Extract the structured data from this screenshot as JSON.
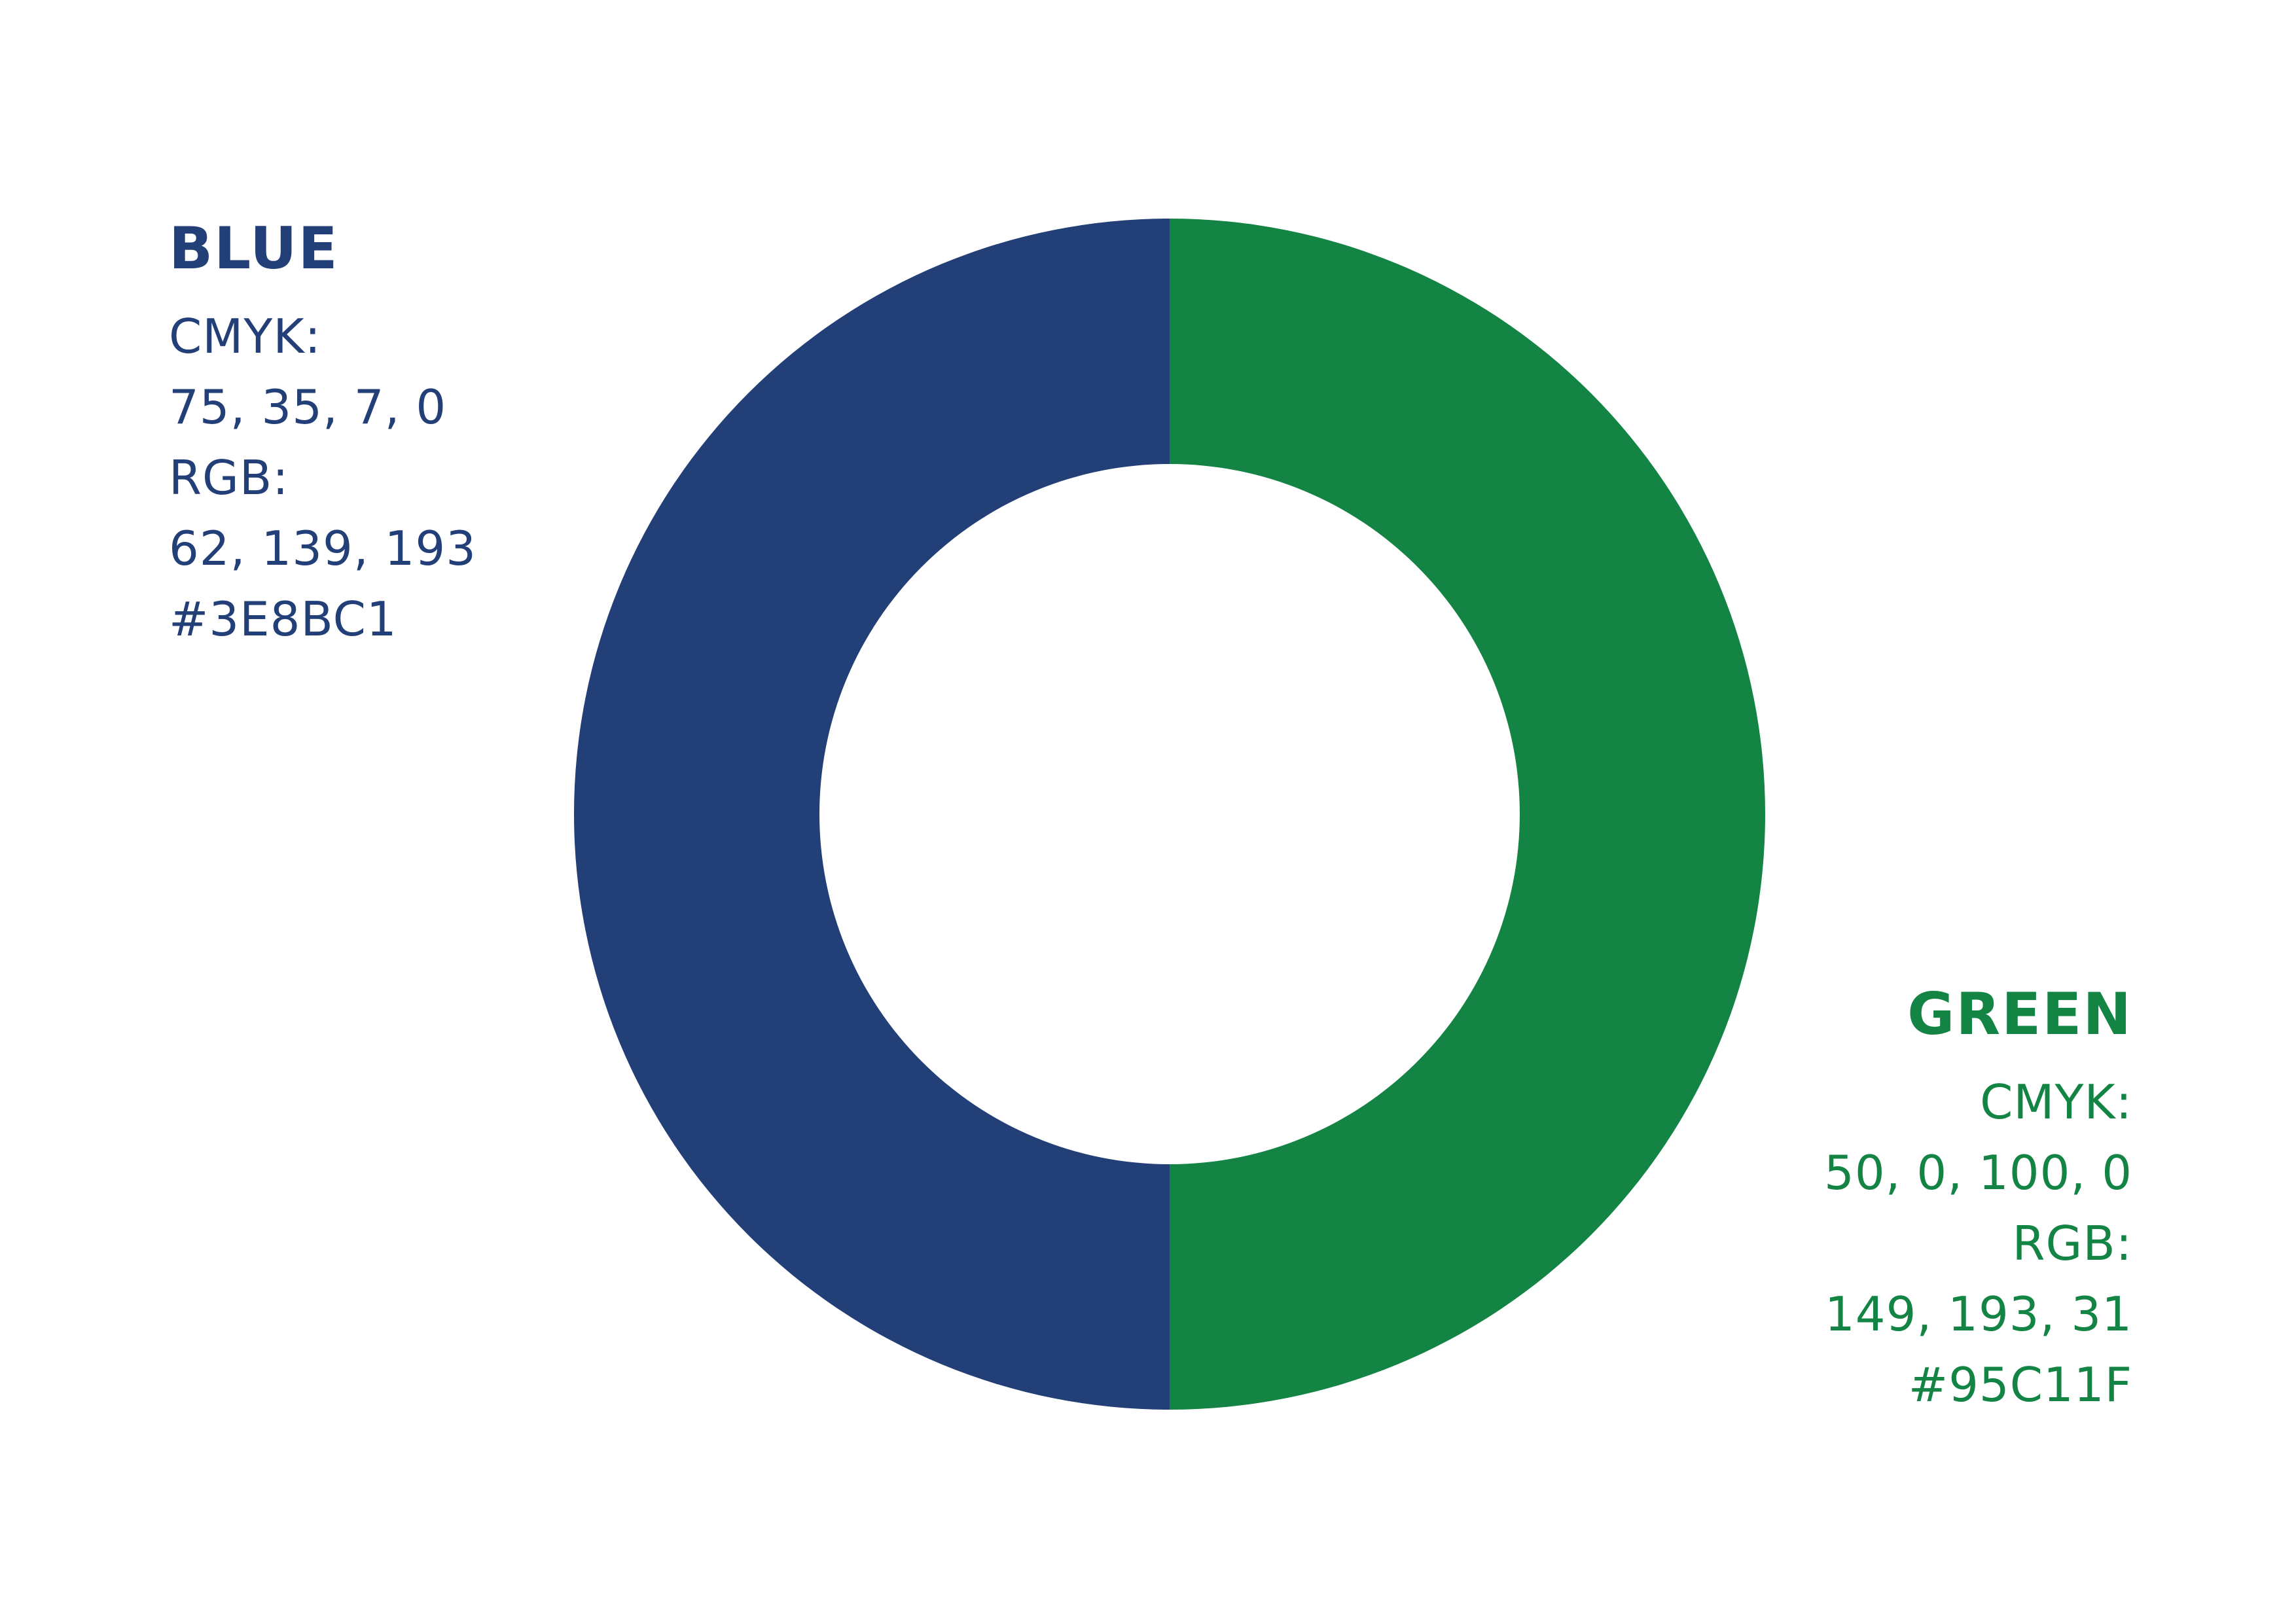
{
  "colors": {
    "blue_display": "#233F78",
    "green_display": "#138443",
    "background": "#FFFFFF"
  },
  "chart_data": {
    "type": "pie",
    "donut": true,
    "categories": [
      "BLUE",
      "GREEN"
    ],
    "values": [
      50,
      50
    ],
    "colors": [
      "#233F78",
      "#138443"
    ],
    "legend": "none"
  },
  "panels": {
    "blue": {
      "name": "BLUE",
      "cmyk_label": "CMYK:",
      "cmyk_value": "75, 35, 7, 0",
      "rgb_label": "RGB:",
      "rgb_value": "62, 139, 193",
      "hex": "#3E8BC1"
    },
    "green": {
      "name": "GREEN",
      "cmyk_label": "CMYK:",
      "cmyk_value": "50, 0, 100, 0",
      "rgb_label": "RGB:",
      "rgb_value": "149, 193, 31",
      "hex": "#95C11F"
    }
  }
}
